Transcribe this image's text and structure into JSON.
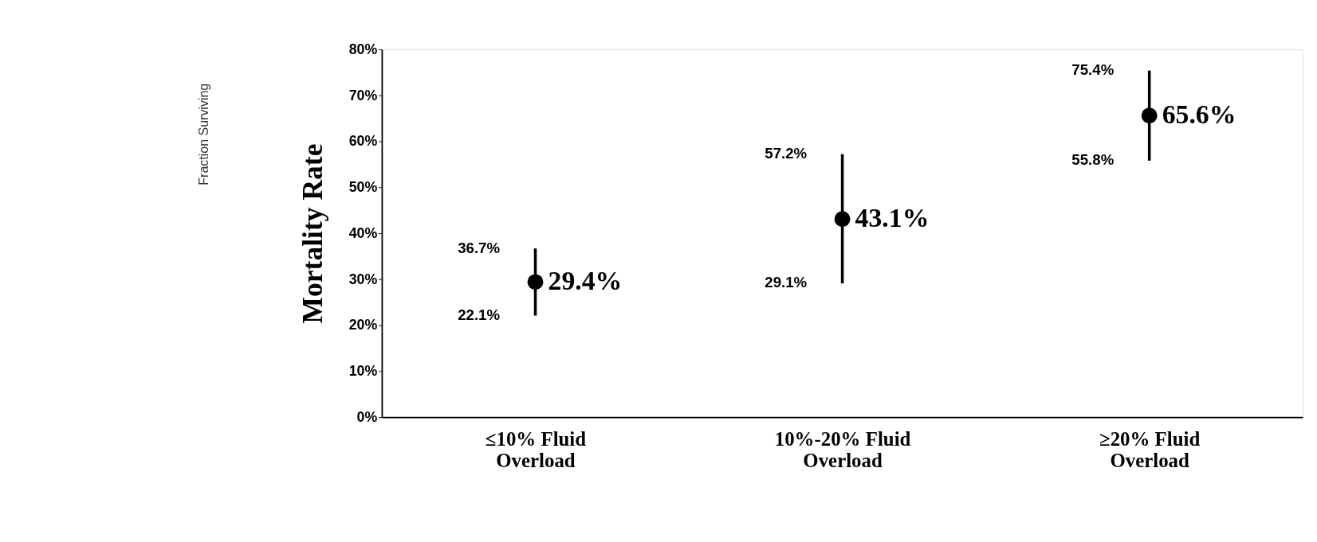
{
  "chart_data": {
    "type": "scatter",
    "ylabel": "Mortality Rate",
    "categories": [
      "≤10% Fluid Overload",
      "10%-20% Fluid Overload",
      "≥20% Fluid Overload"
    ],
    "values": [
      29.4,
      43.1,
      65.6
    ],
    "errors": [
      [
        22.1,
        36.7
      ],
      [
        29.1,
        57.2
      ],
      [
        55.8,
        75.4
      ]
    ],
    "value_labels": [
      "29.4%",
      "43.1%",
      "65.6%"
    ],
    "color": "#000000",
    "marker": "circle",
    "grid": false,
    "ylim": [
      0,
      80
    ],
    "yticks": [
      {
        "value": 0,
        "label": "0%"
      },
      {
        "value": 10,
        "label": "10%"
      },
      {
        "value": 20,
        "label": "20%"
      },
      {
        "value": 30,
        "label": "30%"
      },
      {
        "value": 40,
        "label": "40%"
      },
      {
        "value": 50,
        "label": "50%"
      },
      {
        "value": 60,
        "label": "60%"
      },
      {
        "value": 70,
        "label": "70%"
      },
      {
        "value": 80,
        "label": "80%"
      }
    ],
    "annotations": [
      {
        "text": "36.7%",
        "x": "≤10% Fluid Overload",
        "y": 36.7
      },
      {
        "text": "22.1%",
        "x": "≤10% Fluid Overload",
        "y": 22.1
      },
      {
        "text": "57.2%",
        "x": "10%-20% Fluid Overload",
        "y": 57.2
      },
      {
        "text": "29.1%",
        "x": "10%-20% Fluid Overload",
        "y": 29.1
      },
      {
        "text": "75.4%",
        "x": "≥20% Fluid Overload",
        "y": 75.4
      },
      {
        "text": "55.8%",
        "x": "≥20% Fluid Overload",
        "y": 55.8
      },
      "Fraction Surviving"
    ]
  }
}
